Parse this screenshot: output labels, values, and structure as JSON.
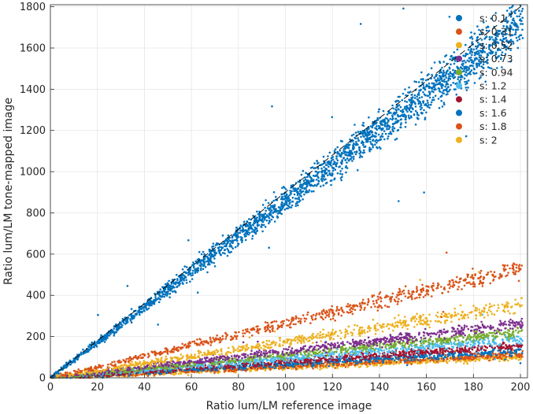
{
  "chart_data": {
    "type": "scatter",
    "title": "",
    "xlabel": "Ratio lum/LM reference image",
    "ylabel": "Ratio lum/LM tone-mapped image",
    "xlim": [
      0,
      203
    ],
    "ylim": [
      0,
      1810
    ],
    "x_ticks": [
      0,
      20,
      40,
      60,
      80,
      100,
      120,
      140,
      160,
      180,
      200
    ],
    "y_ticks": [
      0,
      200,
      400,
      600,
      800,
      1000,
      1200,
      1400,
      1600,
      1800
    ],
    "grid": true,
    "legend_position": "top-right",
    "reference_line": {
      "style": "dashed",
      "color": "#000000",
      "slope": 9.0
    },
    "series": [
      {
        "name": "s: 0.1",
        "color": "#0072BD",
        "slope": 8.6,
        "spread": 0.05
      },
      {
        "name": "s: 0.31",
        "color": "#D95319",
        "slope": 2.65,
        "spread": 0.06
      },
      {
        "name": "s: 0.52",
        "color": "#EDB120",
        "slope": 1.75,
        "spread": 0.07
      },
      {
        "name": "s: 0.73",
        "color": "#7E2F8E",
        "slope": 1.3,
        "spread": 0.07
      },
      {
        "name": "s: 0.94",
        "color": "#77AC30",
        "slope": 1.1,
        "spread": 0.07
      },
      {
        "name": "s: 1.2",
        "color": "#4DBEEE",
        "slope": 0.95,
        "spread": 0.07
      },
      {
        "name": "s: 1.4",
        "color": "#A2142F",
        "slope": 0.78,
        "spread": 0.07
      },
      {
        "name": "s: 1.6",
        "color": "#0072BD",
        "slope": 0.66,
        "spread": 0.08
      },
      {
        "name": "s: 1.8",
        "color": "#D95319",
        "slope": 0.56,
        "spread": 0.08
      },
      {
        "name": "s: 2",
        "color": "#EDB120",
        "slope": 0.5,
        "spread": 0.08
      }
    ]
  }
}
